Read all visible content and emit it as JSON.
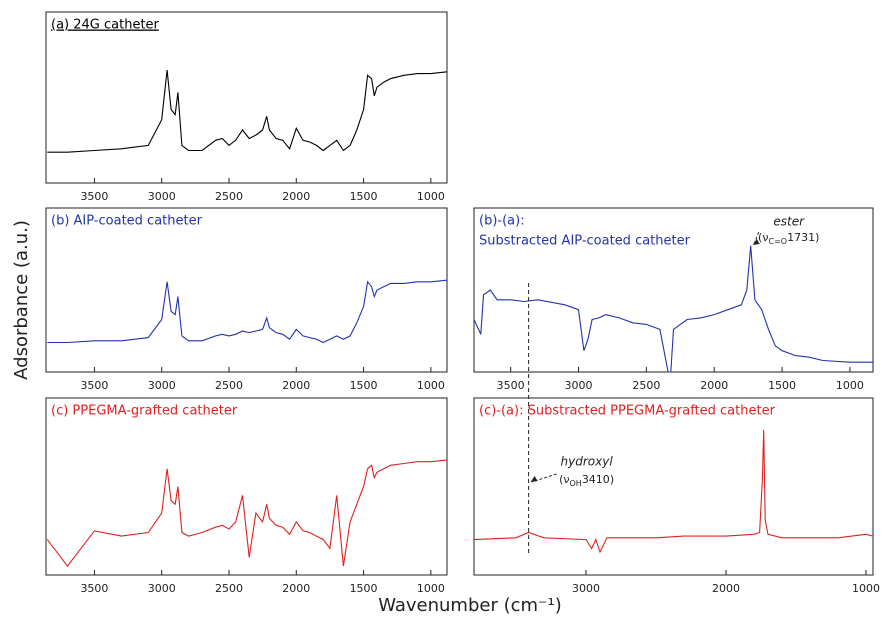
{
  "y_label": "Adsorbance (a.u.)",
  "x_label": "Wavenumber (cm⁻¹)",
  "chart_data": [
    {
      "type": "line",
      "title": "(a) 24G catheter",
      "color": "#000000",
      "x": [
        3850,
        3700,
        3500,
        3300,
        3100,
        3000,
        2960,
        2930,
        2900,
        2880,
        2850,
        2800,
        2700,
        2600,
        2550,
        2500,
        2450,
        2400,
        2350,
        2300,
        2250,
        2220,
        2200,
        2150,
        2100,
        2050,
        2000,
        1950,
        1900,
        1850,
        1800,
        1750,
        1700,
        1650,
        1600,
        1550,
        1500,
        1470,
        1440,
        1420,
        1400,
        1350,
        1300,
        1200,
        1100,
        1000,
        880
      ],
      "values": [
        18,
        18,
        19,
        20,
        22,
        37,
        66,
        43,
        40,
        53,
        22,
        19,
        19,
        25,
        26,
        22,
        25,
        31,
        26,
        28,
        31,
        39,
        31,
        26,
        25,
        20,
        32,
        25,
        24,
        22,
        19,
        22,
        25,
        19,
        22,
        31,
        43,
        63,
        61,
        51,
        56,
        59,
        61,
        63,
        64,
        64,
        65
      ],
      "xlim": [
        3860,
        880
      ],
      "xticks": [
        3500,
        3000,
        2500,
        2000,
        1500,
        1000
      ],
      "ylim": [
        0,
        100
      ]
    },
    {
      "type": "line",
      "title": "(b) AIP-coated catheter",
      "color": "#2233aa",
      "x": [
        3850,
        3700,
        3500,
        3300,
        3100,
        3000,
        2960,
        2930,
        2900,
        2880,
        2850,
        2800,
        2700,
        2600,
        2550,
        2500,
        2450,
        2400,
        2350,
        2300,
        2250,
        2220,
        2200,
        2150,
        2100,
        2050,
        2000,
        1950,
        1900,
        1850,
        1800,
        1750,
        1700,
        1650,
        1600,
        1550,
        1500,
        1470,
        1440,
        1420,
        1400,
        1350,
        1300,
        1200,
        1100,
        1000,
        880
      ],
      "values": [
        18,
        18,
        19,
        19,
        21,
        32,
        55,
        37,
        35,
        46,
        22,
        19,
        19,
        22,
        23,
        22,
        23,
        25,
        24,
        25,
        26,
        33,
        27,
        24,
        23,
        20,
        26,
        22,
        21,
        20,
        18,
        20,
        22,
        20,
        22,
        30,
        40,
        55,
        52,
        46,
        50,
        52,
        54,
        54,
        55,
        55,
        56
      ],
      "xlim": [
        3860,
        880
      ],
      "xticks": [
        3500,
        3000,
        2500,
        2000,
        1500,
        1000
      ],
      "ylim": [
        0,
        100
      ]
    },
    {
      "type": "line",
      "title": "(c) PPEGMA-grafted catheter",
      "color": "#e02020",
      "x": [
        3850,
        3700,
        3500,
        3300,
        3100,
        3000,
        2960,
        2930,
        2900,
        2880,
        2850,
        2800,
        2700,
        2600,
        2550,
        2500,
        2450,
        2400,
        2350,
        2300,
        2250,
        2220,
        2200,
        2150,
        2100,
        2050,
        2000,
        1950,
        1900,
        1850,
        1800,
        1750,
        1700,
        1650,
        1600,
        1550,
        1500,
        1470,
        1440,
        1420,
        1400,
        1350,
        1300,
        1200,
        1100,
        1000,
        880
      ],
      "values": [
        20,
        5,
        25,
        22,
        24,
        35,
        60,
        42,
        40,
        50,
        24,
        22,
        24,
        27,
        28,
        26,
        30,
        45,
        10,
        35,
        30,
        40,
        32,
        28,
        27,
        23,
        30,
        25,
        24,
        22,
        20,
        15,
        45,
        5,
        30,
        40,
        50,
        60,
        62,
        55,
        58,
        60,
        62,
        63,
        64,
        64,
        65
      ],
      "xlim": [
        3860,
        880
      ],
      "xticks": [
        3500,
        3000,
        2500,
        2000,
        1500,
        1000
      ],
      "ylim": [
        0,
        100
      ]
    },
    {
      "type": "line",
      "title": "(b)-(a):",
      "subtitle": "Substracted AIP-coated catheter",
      "color": "#2233aa",
      "x": [
        3770,
        3720,
        3700,
        3650,
        3600,
        3500,
        3400,
        3300,
        3100,
        3000,
        2960,
        2930,
        2900,
        2850,
        2800,
        2700,
        2600,
        2500,
        2400,
        2340,
        2320,
        2300,
        2250,
        2200,
        2100,
        2000,
        1900,
        1800,
        1760,
        1731,
        1700,
        1650,
        1600,
        1550,
        1500,
        1400,
        1300,
        1200,
        1000,
        830
      ],
      "values": [
        32,
        23,
        47,
        50,
        44,
        44,
        43,
        44,
        41,
        38,
        13,
        20,
        32,
        33,
        35,
        33,
        30,
        29,
        26,
        0,
        0,
        26,
        29,
        32,
        33,
        35,
        38,
        41,
        50,
        77,
        44,
        38,
        26,
        16,
        13,
        10,
        9,
        7,
        6,
        6
      ],
      "xlim": [
        3770,
        830
      ],
      "xticks": [
        3500,
        3000,
        2500,
        2000,
        1500,
        1000
      ],
      "ylim": [
        0,
        100
      ],
      "annotation": {
        "label": "ester",
        "symbol": "(ν",
        "subscript": "C=O",
        "wavenumber": 1731,
        "close": ")"
      }
    },
    {
      "type": "line",
      "title": "(c)-(a): Substracted PPEGMA-grafted catheter",
      "color": "#e02020",
      "x": [
        3800,
        3500,
        3410,
        3300,
        3000,
        2960,
        2930,
        2900,
        2850,
        2700,
        2500,
        2300,
        2000,
        1800,
        1760,
        1740,
        1731,
        1720,
        1700,
        1600,
        1500,
        1400,
        1200,
        1000,
        950
      ],
      "values": [
        20,
        21,
        24,
        21,
        20,
        15,
        20,
        13,
        21,
        21,
        21,
        22,
        22,
        23,
        24,
        54,
        82,
        31,
        23,
        21,
        21,
        21,
        21,
        23,
        22
      ],
      "xlim": [
        3800,
        950
      ],
      "xticks": [
        3000,
        2000,
        1000
      ],
      "ylim": [
        0,
        100
      ],
      "annotation": {
        "label": "hydroxyl",
        "symbol": "(ν",
        "subscript": "OH",
        "wavenumber": 3410,
        "close": ")"
      }
    }
  ]
}
